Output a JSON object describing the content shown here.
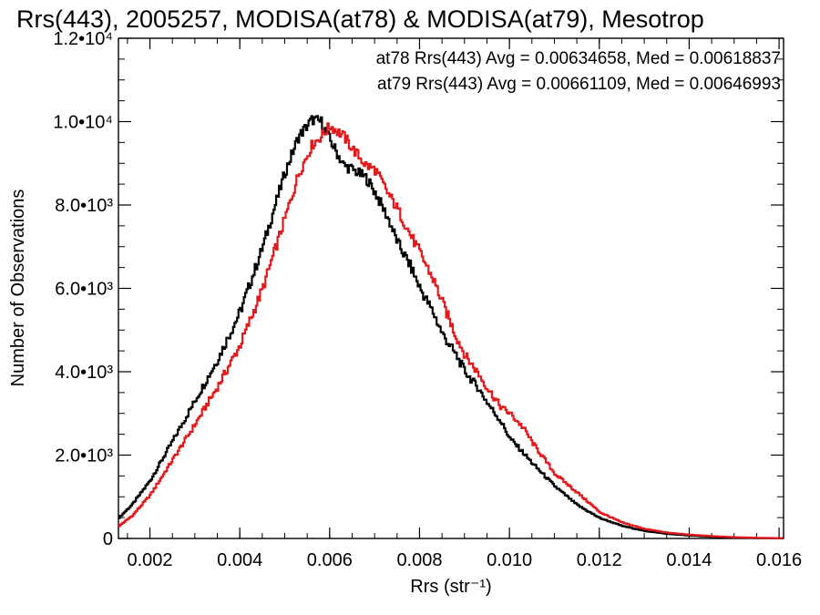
{
  "chart_data": {
    "type": "line",
    "title": "Rrs(443), 2005257, MODISA(at78) & MODISA(at79), Mesotrop",
    "xlabel": "Rrs (str⁻¹)",
    "ylabel": "Number of Observations",
    "xlim": [
      0.0013,
      0.0161
    ],
    "ylim": [
      0,
      12000
    ],
    "x_ticks": [
      "0.002",
      "0.004",
      "0.006",
      "0.008",
      "0.010",
      "0.012",
      "0.014",
      "0.016"
    ],
    "y_ticks": [
      "0",
      "2.0•10³",
      "4.0•10³",
      "6.0•10³",
      "8.0•10³",
      "1.0•10⁴",
      "1.2•10⁴"
    ],
    "y_tick_values": [
      0,
      2000,
      4000,
      6000,
      8000,
      10000,
      12000
    ],
    "grid": false,
    "legend_position": "top-right",
    "annotations": [
      "at78 Rrs(443) Avg = 0.00634658, Med = 0.00618837",
      "at79 Rrs(443) Avg = 0.00661109, Med = 0.00646993"
    ],
    "series": [
      {
        "color": "#000000",
        "x": [
          0.0013,
          0.0016,
          0.002,
          0.0025,
          0.003,
          0.0035,
          0.004,
          0.0045,
          0.005,
          0.0053,
          0.0056,
          0.0058,
          0.006,
          0.0063,
          0.0065,
          0.0068,
          0.007,
          0.0073,
          0.0075,
          0.0078,
          0.008,
          0.0083,
          0.0085,
          0.0088,
          0.009,
          0.0093,
          0.0095,
          0.0098,
          0.01,
          0.0103,
          0.0105,
          0.011,
          0.0115,
          0.012,
          0.0125,
          0.013,
          0.0135,
          0.014,
          0.0145,
          0.015,
          0.0155,
          0.016
        ],
        "y": [
          500,
          820,
          1400,
          2350,
          3320,
          4300,
          5450,
          7000,
          8800,
          9650,
          10050,
          10000,
          9550,
          8950,
          8850,
          8650,
          8300,
          7650,
          7100,
          6500,
          6000,
          5400,
          4900,
          4400,
          4000,
          3600,
          3250,
          2800,
          2400,
          2050,
          1800,
          1250,
          800,
          490,
          300,
          180,
          110,
          70,
          40,
          20,
          10,
          5
        ]
      },
      {
        "color": "#e31a1c",
        "x": [
          0.0013,
          0.0016,
          0.002,
          0.0025,
          0.003,
          0.0035,
          0.004,
          0.0045,
          0.005,
          0.0053,
          0.0056,
          0.0058,
          0.006,
          0.0063,
          0.0065,
          0.0068,
          0.007,
          0.0073,
          0.0075,
          0.0078,
          0.008,
          0.0083,
          0.0085,
          0.0088,
          0.009,
          0.0093,
          0.0095,
          0.0098,
          0.01,
          0.0103,
          0.0105,
          0.011,
          0.0115,
          0.012,
          0.0125,
          0.013,
          0.0135,
          0.014,
          0.0145,
          0.015,
          0.0155,
          0.016
        ],
        "y": [
          300,
          550,
          1050,
          1900,
          2750,
          3650,
          4650,
          6000,
          7700,
          8750,
          9450,
          9650,
          9900,
          9650,
          9350,
          8950,
          8850,
          8250,
          7900,
          7250,
          6850,
          6200,
          5650,
          4850,
          4400,
          3950,
          3600,
          3150,
          3000,
          2650,
          2300,
          1550,
          1100,
          630,
          380,
          230,
          140,
          90,
          55,
          30,
          15,
          8
        ]
      }
    ]
  }
}
